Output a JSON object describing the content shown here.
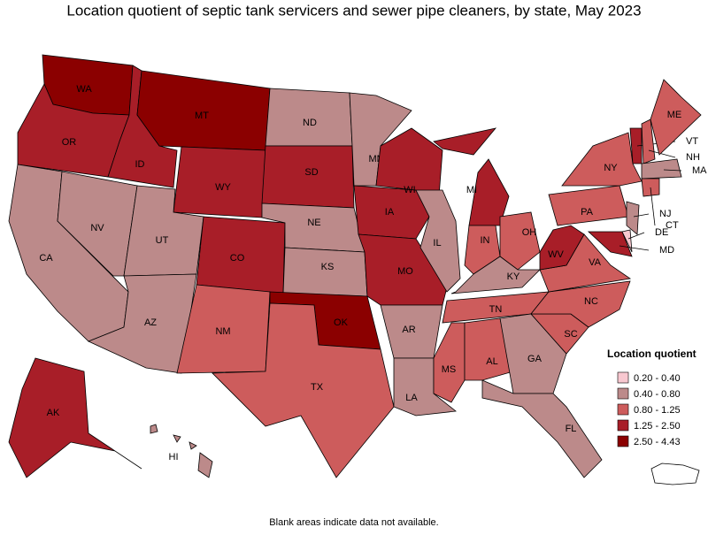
{
  "title": "Location quotient of septic tank servicers and sewer pipe cleaners, by state, May 2023",
  "states": [
    {
      "label": "WA",
      "color": "#8b0000"
    },
    {
      "label": "OR",
      "color": "#a81e28"
    },
    {
      "label": "CA",
      "color": "#bc8a8a"
    },
    {
      "label": "NV",
      "color": "#bc8a8a"
    },
    {
      "label": "ID",
      "color": "#a81e28"
    },
    {
      "label": "MT",
      "color": "#8b0000"
    },
    {
      "label": "WY",
      "color": "#a81e28"
    },
    {
      "label": "UT",
      "color": "#bc8a8a"
    },
    {
      "label": "AZ",
      "color": "#bc8a8a"
    },
    {
      "label": "CO",
      "color": "#a81e28"
    },
    {
      "label": "NM",
      "color": "#cd5c5c"
    },
    {
      "label": "ND",
      "color": "#bc8a8a"
    },
    {
      "label": "SD",
      "color": "#a81e28"
    },
    {
      "label": "NE",
      "color": "#bc8a8a"
    },
    {
      "label": "KS",
      "color": "#bc8a8a"
    },
    {
      "label": "OK",
      "color": "#8b0000"
    },
    {
      "label": "TX",
      "color": "#cd5c5c"
    },
    {
      "label": "MN",
      "color": "#bc8a8a"
    },
    {
      "label": "IA",
      "color": "#a81e28"
    },
    {
      "label": "MO",
      "color": "#a81e28"
    },
    {
      "label": "AR",
      "color": "#bc8a8a"
    },
    {
      "label": "LA",
      "color": "#bc8a8a"
    },
    {
      "label": "WI",
      "color": "#a81e28"
    },
    {
      "label": "IL",
      "color": "#bc8a8a"
    },
    {
      "label": "MI",
      "color": "#a81e28"
    },
    {
      "label": "IN",
      "color": "#cd5c5c"
    },
    {
      "label": "OH",
      "color": "#cd5c5c"
    },
    {
      "label": "KY",
      "color": "#bc8a8a"
    },
    {
      "label": "TN",
      "color": "#cd5c5c"
    },
    {
      "label": "MS",
      "color": "#cd5c5c"
    },
    {
      "label": "AL",
      "color": "#cd5c5c"
    },
    {
      "label": "GA",
      "color": "#bc8a8a"
    },
    {
      "label": "FL",
      "color": "#bc8a8a"
    },
    {
      "label": "SC",
      "color": "#cd5c5c"
    },
    {
      "label": "NC",
      "color": "#cd5c5c"
    },
    {
      "label": "VA",
      "color": "#cd5c5c"
    },
    {
      "label": "WV",
      "color": "#a81e28"
    },
    {
      "label": "PA",
      "color": "#cd5c5c"
    },
    {
      "label": "NY",
      "color": "#cd5c5c"
    },
    {
      "label": "VT",
      "color": "#a81e28"
    },
    {
      "label": "NH",
      "color": "#cd5c5c"
    },
    {
      "label": "ME",
      "color": "#cd5c5c"
    },
    {
      "label": "MA",
      "color": "#bc8a8a"
    },
    {
      "label": "CT",
      "color": "#cd5c5c"
    },
    {
      "label": "NJ",
      "color": "#bc8a8a"
    },
    {
      "label": "DE",
      "color": "#f8c8d0"
    },
    {
      "label": "MD",
      "color": "#a81e28"
    },
    {
      "label": "AK",
      "color": "#a81e28"
    },
    {
      "label": "HI",
      "color": "#bc8a8a"
    }
  ],
  "legend": {
    "title": "Location quotient",
    "items": [
      {
        "label": "0.20 - 0.40",
        "color": "#f8c8d0"
      },
      {
        "label": "0.40 - 0.80",
        "color": "#bc8a8a"
      },
      {
        "label": "0.80 - 1.25",
        "color": "#cd5c5c"
      },
      {
        "label": "1.25 - 2.50",
        "color": "#a81e28"
      },
      {
        "label": "2.50 - 4.43",
        "color": "#8b0000"
      }
    ]
  },
  "footnote": "Blank areas indicate data not available."
}
